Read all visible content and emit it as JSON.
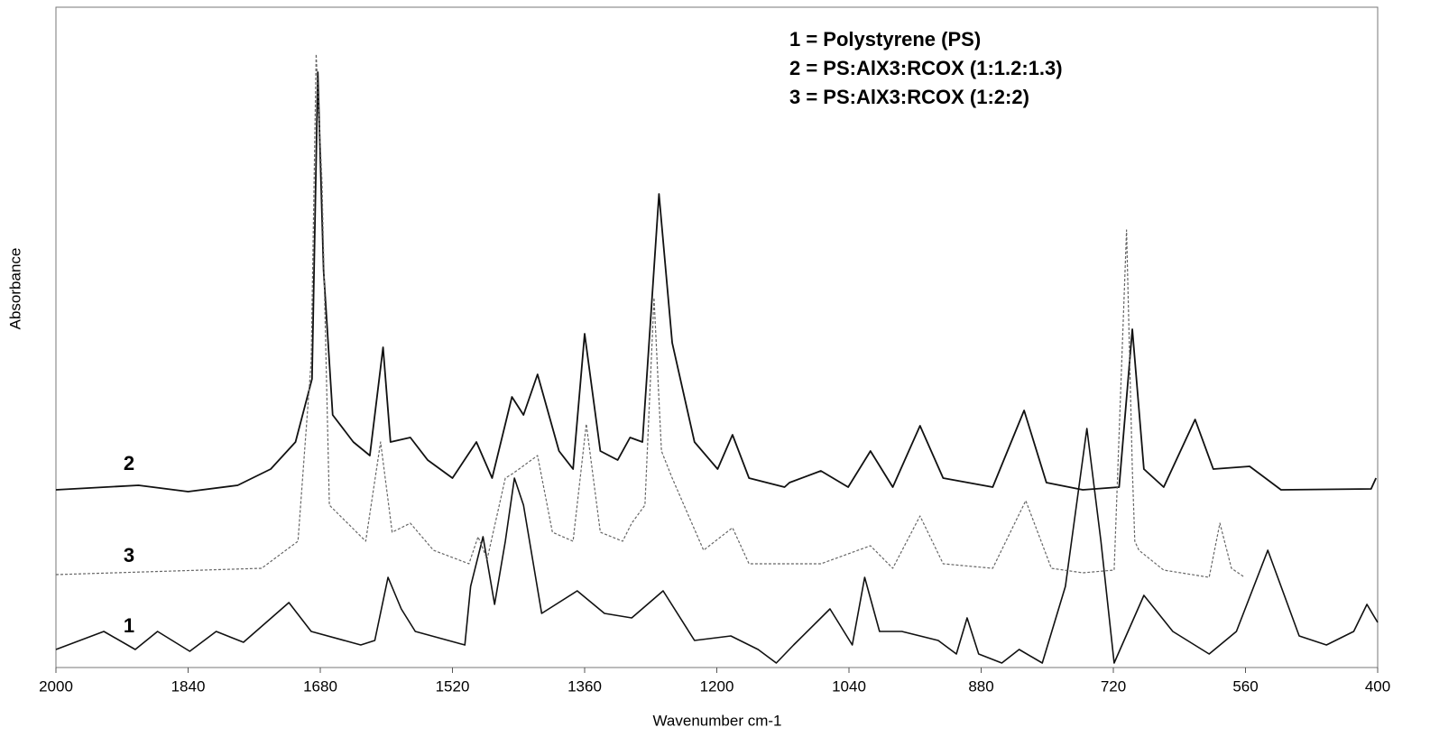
{
  "chart_data": {
    "type": "line",
    "x_label": "Wavenumber cm-1",
    "y_label": "Absorbance",
    "xlim": [
      2000,
      400
    ],
    "xticks": [
      2000,
      1840,
      1680,
      1520,
      1360,
      1200,
      1040,
      880,
      720,
      560,
      400
    ],
    "ylim": [
      0,
      732
    ],
    "legend": "top-right",
    "annotations": [
      "2",
      "3",
      "1"
    ],
    "series": [
      {
        "name": "1 = Polystyrene (PS)",
        "color": "#111111",
        "x": [
          2000,
          1942,
          1904,
          1877,
          1838,
          1806,
          1773,
          1718,
          1691,
          1631,
          1614,
          1598,
          1582,
          1565,
          1505,
          1498,
          1483,
          1469,
          1456,
          1445,
          1434,
          1412,
          1369,
          1336,
          1303,
          1265,
          1227,
          1183,
          1150,
          1128,
          1107,
          1063,
          1036,
          1021,
          1003,
          976,
          932,
          910,
          897,
          883,
          855,
          834,
          806,
          778,
          752,
          735,
          719,
          683,
          648,
          604,
          571,
          533,
          495,
          462,
          429,
          413,
          400
        ],
        "values": [
          20,
          40,
          20,
          40,
          18,
          40,
          28,
          72,
          40,
          25,
          30,
          100,
          65,
          40,
          25,
          90,
          145,
          70,
          140,
          210,
          180,
          60,
          85,
          60,
          55,
          85,
          30,
          35,
          20,
          5,
          25,
          65,
          25,
          100,
          40,
          40,
          30,
          15,
          55,
          15,
          5,
          20,
          5,
          90,
          265,
          140,
          5,
          80,
          40,
          15,
          40,
          130,
          35,
          25,
          40,
          70,
          50
        ]
      },
      {
        "name": "2 = PS:AlX3:RCOX (1:1.2:1.3)",
        "color": "#111111",
        "x": [
          2000,
          1900,
          1840,
          1780,
          1740,
          1710,
          1690,
          1683,
          1676,
          1665,
          1640,
          1620,
          1604,
          1595,
          1571,
          1550,
          1520,
          1491,
          1472,
          1448,
          1434,
          1417,
          1391,
          1374,
          1360,
          1341,
          1320,
          1305,
          1290,
          1270,
          1254,
          1227,
          1199,
          1181,
          1161,
          1118,
          1112,
          1074,
          1041,
          1014,
          987,
          954,
          926,
          866,
          828,
          801,
          757,
          713,
          697,
          683,
          659,
          621,
          599,
          555,
          517,
          408,
          402
        ],
        "values": [
          197,
          202,
          195,
          202,
          220,
          250,
          320,
          660,
          440,
          280,
          250,
          235,
          355,
          250,
          255,
          230,
          210,
          250,
          210,
          300,
          280,
          325,
          240,
          220,
          370,
          240,
          230,
          255,
          250,
          525,
          360,
          250,
          220,
          258,
          210,
          200,
          205,
          218,
          200,
          240,
          200,
          268,
          210,
          200,
          285,
          205,
          197,
          200,
          375,
          220,
          200,
          275,
          220,
          223,
          197,
          198,
          210
        ]
      },
      {
        "name": "3 = PS:AlX3:RCOX (1:2:2)",
        "color": "#666666",
        "x": [
          2000,
          1751,
          1707,
          1691,
          1685,
          1678,
          1669,
          1625,
          1607,
          1593,
          1571,
          1543,
          1500,
          1489,
          1478,
          1456,
          1447,
          1417,
          1399,
          1374,
          1358,
          1341,
          1314,
          1303,
          1287,
          1276,
          1267,
          1254,
          1216,
          1181,
          1161,
          1074,
          1014,
          987,
          954,
          926,
          866,
          826,
          795,
          757,
          719,
          704,
          697,
          694,
          689,
          659,
          604,
          591,
          577,
          561
        ],
        "values": [
          103,
          110,
          140,
          340,
          680,
          540,
          180,
          140,
          250,
          150,
          160,
          130,
          115,
          145,
          120,
          210,
          215,
          235,
          150,
          140,
          270,
          150,
          140,
          160,
          180,
          410,
          240,
          210,
          130,
          155,
          115,
          115,
          135,
          110,
          168,
          115,
          110,
          185,
          110,
          105,
          108,
          485,
          220,
          140,
          130,
          108,
          100,
          160,
          110,
          100
        ]
      }
    ]
  }
}
